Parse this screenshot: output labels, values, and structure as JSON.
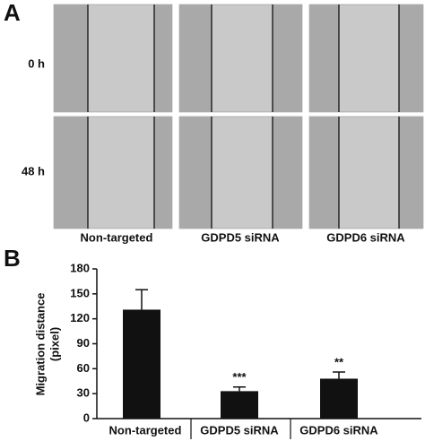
{
  "panel_a": {
    "label": "A",
    "rows": [
      "0 h",
      "48 h"
    ],
    "columns": [
      "Non-targeted",
      "GDPD5 siRNA",
      "GDPD6 siRNA"
    ]
  },
  "panel_b": {
    "label": "B"
  },
  "chart_data": {
    "type": "bar",
    "y_label": [
      "Migration distance",
      "(pixel)"
    ],
    "categories": [
      "Non-targeted",
      "GDPD5 siRNA",
      "GDPD6 siRNA"
    ],
    "values": [
      131,
      33,
      48
    ],
    "errors": [
      24,
      5,
      8
    ],
    "significance": [
      null,
      "***",
      "**"
    ],
    "color": "#111111",
    "ylim": [
      0,
      180
    ],
    "yticks": [
      0,
      30,
      60,
      90,
      120,
      150,
      180
    ],
    "grid": false
  }
}
